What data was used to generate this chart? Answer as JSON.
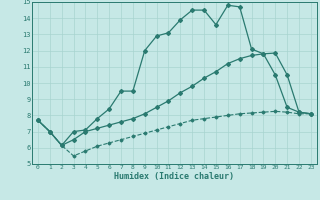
{
  "xlabel": "Humidex (Indice chaleur)",
  "ylabel": "",
  "xlim": [
    -0.5,
    23.5
  ],
  "ylim": [
    5,
    15
  ],
  "xticks": [
    0,
    1,
    2,
    3,
    4,
    5,
    6,
    7,
    8,
    9,
    10,
    11,
    12,
    13,
    14,
    15,
    16,
    17,
    18,
    19,
    20,
    21,
    22,
    23
  ],
  "yticks": [
    5,
    6,
    7,
    8,
    9,
    10,
    11,
    12,
    13,
    14,
    15
  ],
  "bg_color": "#c6e8e6",
  "line_color": "#2a7a70",
  "grid_color": "#a8d4d0",
  "line1_x": [
    0,
    1,
    2,
    3,
    4,
    5,
    6,
    7,
    8,
    9,
    10,
    11,
    12,
    13,
    14,
    15,
    16,
    17,
    18,
    19,
    20,
    21,
    22,
    23
  ],
  "line1_y": [
    7.7,
    7.0,
    6.15,
    7.0,
    7.1,
    7.8,
    8.4,
    9.5,
    9.5,
    12.0,
    12.9,
    13.1,
    13.9,
    14.5,
    14.5,
    13.6,
    14.8,
    14.7,
    12.1,
    11.8,
    10.5,
    8.5,
    8.2,
    8.1
  ],
  "line2_x": [
    0,
    1,
    2,
    3,
    4,
    5,
    6,
    7,
    8,
    9,
    10,
    11,
    12,
    13,
    14,
    15,
    16,
    17,
    18,
    19,
    20,
    21,
    22,
    23
  ],
  "line2_y": [
    7.7,
    7.0,
    6.15,
    6.5,
    7.0,
    7.2,
    7.4,
    7.6,
    7.8,
    8.1,
    8.5,
    8.9,
    9.4,
    9.8,
    10.3,
    10.7,
    11.2,
    11.5,
    11.7,
    11.8,
    11.85,
    10.5,
    8.2,
    8.1
  ],
  "line3_x": [
    0,
    1,
    2,
    3,
    4,
    5,
    6,
    7,
    8,
    9,
    10,
    11,
    12,
    13,
    14,
    15,
    16,
    17,
    18,
    19,
    20,
    21,
    22,
    23
  ],
  "line3_y": [
    7.7,
    7.0,
    6.15,
    5.5,
    5.8,
    6.1,
    6.3,
    6.5,
    6.7,
    6.9,
    7.1,
    7.3,
    7.5,
    7.7,
    7.8,
    7.9,
    8.0,
    8.1,
    8.15,
    8.2,
    8.25,
    8.2,
    8.1,
    8.1
  ]
}
